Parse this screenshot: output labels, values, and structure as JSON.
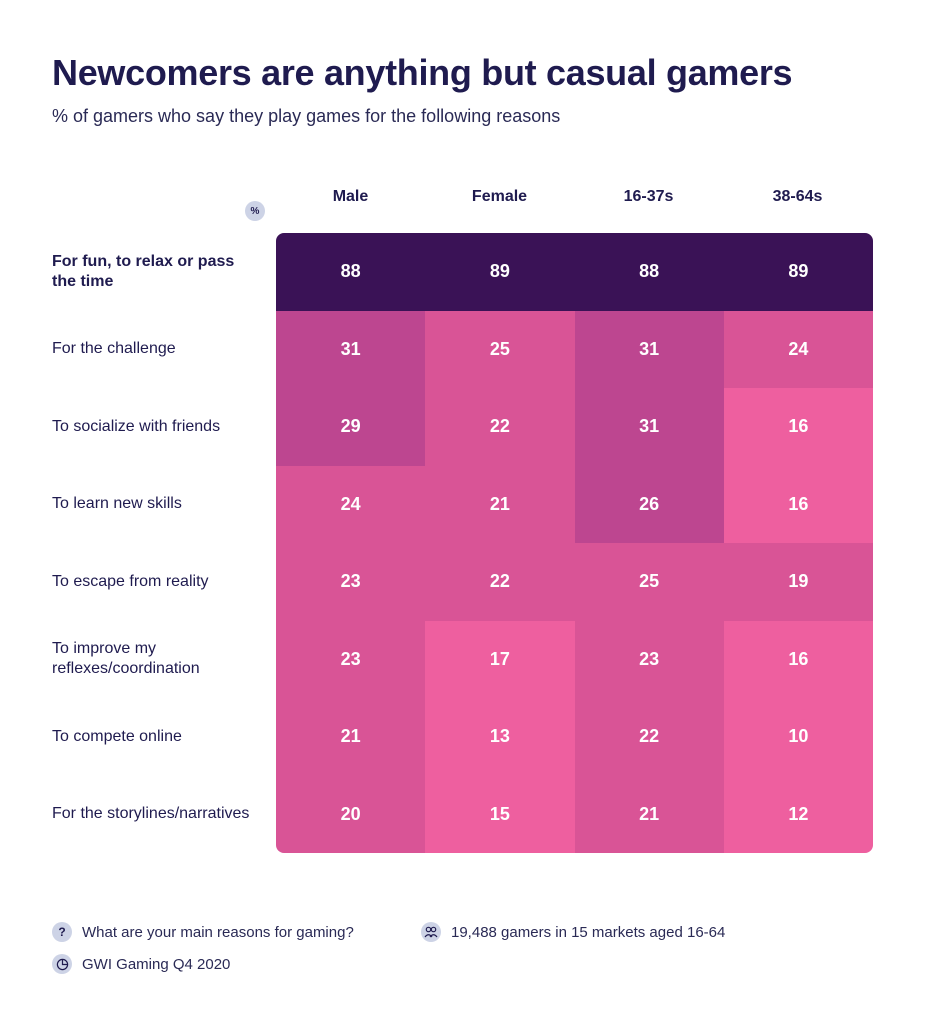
{
  "chart_data": {
    "type": "heatmap",
    "title": "Newcomers are anything but casual gamers",
    "subtitle": "% of gamers who say they play games for the following reasons",
    "unit_badge": "%",
    "columns": [
      "Male",
      "Female",
      "16-37s",
      "38-64s"
    ],
    "rows": [
      {
        "label": "For fun, to relax or pass the time",
        "values": [
          88,
          89,
          88,
          89
        ]
      },
      {
        "label": "For the challenge",
        "values": [
          31,
          25,
          31,
          24
        ]
      },
      {
        "label": "To socialize with friends",
        "values": [
          29,
          22,
          31,
          16
        ]
      },
      {
        "label": "To learn new skills",
        "values": [
          24,
          21,
          26,
          16
        ]
      },
      {
        "label": "To escape from reality",
        "values": [
          23,
          22,
          25,
          19
        ]
      },
      {
        "label": "To improve my reflexes/coordination",
        "values": [
          23,
          17,
          23,
          16
        ]
      },
      {
        "label": "To compete online",
        "values": [
          21,
          13,
          22,
          10
        ]
      },
      {
        "label": "For the storylines/narratives",
        "values": [
          20,
          15,
          21,
          12
        ]
      }
    ],
    "color_scale": {
      "top": "#3a1256",
      "high": "#bd4690",
      "mid": "#d95496",
      "low": "#ee5f9f"
    }
  },
  "footer": {
    "question_icon": "?",
    "question": "What are your main reasons for gaming?",
    "sample": "19,488 gamers in 15 markets aged 16-64",
    "source": "GWI Gaming Q4 2020"
  }
}
